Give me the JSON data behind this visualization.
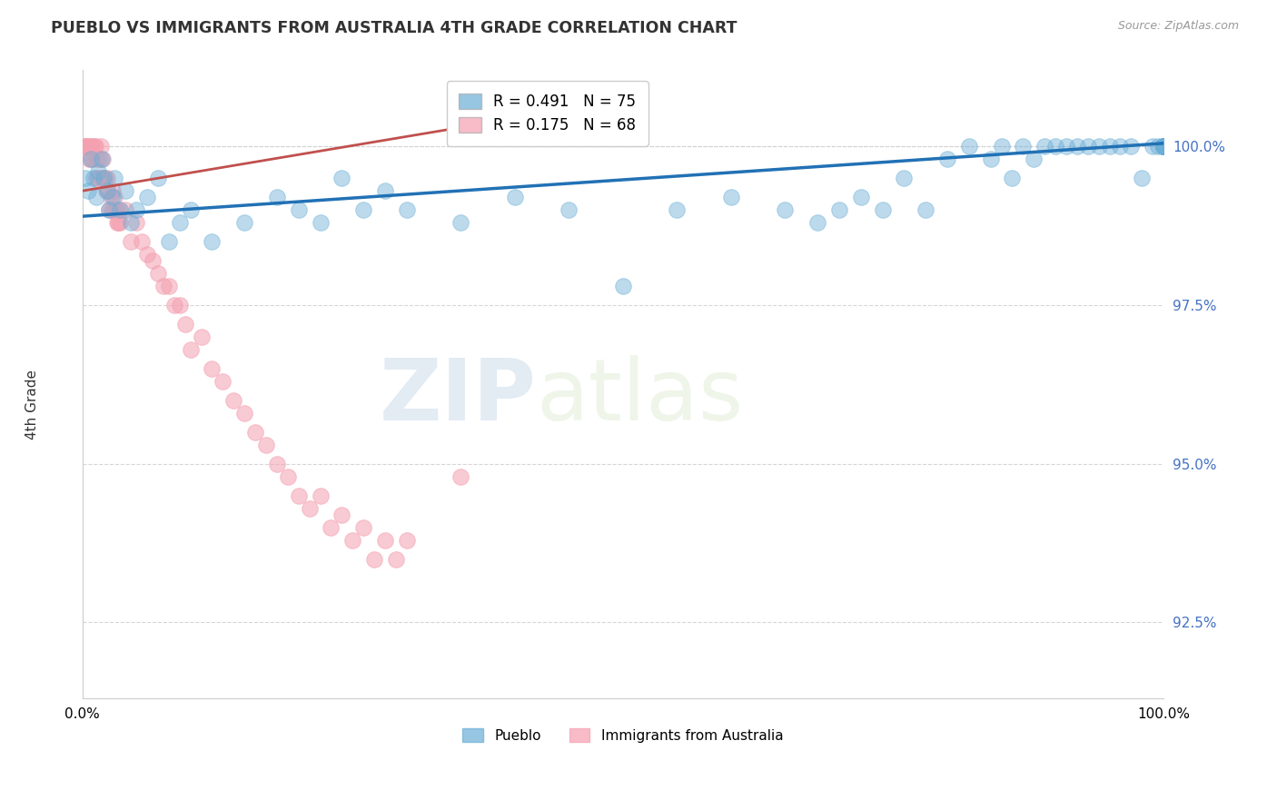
{
  "title": "PUEBLO VS IMMIGRANTS FROM AUSTRALIA 4TH GRADE CORRELATION CHART",
  "source_text": "Source: ZipAtlas.com",
  "ylabel": "4th Grade",
  "watermark_zip": "ZIP",
  "watermark_atlas": "atlas",
  "xlim": [
    0.0,
    100.0
  ],
  "ylim": [
    91.3,
    101.2
  ],
  "yticks": [
    92.5,
    95.0,
    97.5,
    100.0
  ],
  "ytick_labels": [
    "92.5%",
    "95.0%",
    "97.5%",
    "100.0%"
  ],
  "legend_blue_label": "R = 0.491   N = 75",
  "legend_pink_label": "R = 0.175   N = 68",
  "legend_bottom_blue": "Pueblo",
  "legend_bottom_pink": "Immigrants from Australia",
  "blue_color": "#6baed6",
  "pink_color": "#f4a0b0",
  "blue_line_color": "#2171b5",
  "pink_line_color": "#c0504d",
  "blue_scatter": {
    "x": [
      0.3,
      0.5,
      0.8,
      1.0,
      1.3,
      1.5,
      1.8,
      2.0,
      2.3,
      2.5,
      2.8,
      3.0,
      3.5,
      4.0,
      4.5,
      5.0,
      6.0,
      7.0,
      8.0,
      9.0,
      10.0,
      12.0,
      15.0,
      18.0,
      20.0,
      22.0,
      24.0,
      26.0,
      28.0,
      30.0,
      35.0,
      40.0,
      45.0,
      50.0,
      55.0,
      60.0,
      65.0,
      68.0,
      70.0,
      72.0,
      74.0,
      76.0,
      78.0,
      80.0,
      82.0,
      84.0,
      85.0,
      86.0,
      87.0,
      88.0,
      89.0,
      90.0,
      91.0,
      92.0,
      93.0,
      94.0,
      95.0,
      96.0,
      97.0,
      98.0,
      99.0,
      99.5,
      100.0,
      100.0,
      100.0,
      100.0,
      100.0,
      100.0,
      100.0,
      100.0,
      100.0,
      100.0,
      100.0,
      100.0,
      100.0
    ],
    "y": [
      99.5,
      99.3,
      99.8,
      99.5,
      99.2,
      99.6,
      99.8,
      99.5,
      99.3,
      99.0,
      99.2,
      99.5,
      99.0,
      99.3,
      98.8,
      99.0,
      99.2,
      99.5,
      98.5,
      98.8,
      99.0,
      98.5,
      98.8,
      99.2,
      99.0,
      98.8,
      99.5,
      99.0,
      99.3,
      99.0,
      98.8,
      99.2,
      99.0,
      97.8,
      99.0,
      99.2,
      99.0,
      98.8,
      99.0,
      99.2,
      99.0,
      99.5,
      99.0,
      99.8,
      100.0,
      99.8,
      100.0,
      99.5,
      100.0,
      99.8,
      100.0,
      100.0,
      100.0,
      100.0,
      100.0,
      100.0,
      100.0,
      100.0,
      100.0,
      99.5,
      100.0,
      100.0,
      100.0,
      100.0,
      100.0,
      100.0,
      100.0,
      100.0,
      100.0,
      100.0,
      100.0,
      100.0,
      100.0,
      100.0,
      100.0
    ]
  },
  "pink_scatter": {
    "x": [
      0.2,
      0.3,
      0.4,
      0.5,
      0.6,
      0.7,
      0.8,
      0.9,
      1.0,
      1.1,
      1.2,
      1.3,
      1.4,
      1.5,
      1.6,
      1.7,
      1.8,
      1.9,
      2.0,
      2.1,
      2.2,
      2.3,
      2.4,
      2.5,
      2.6,
      2.7,
      2.8,
      2.9,
      3.0,
      3.1,
      3.2,
      3.3,
      3.4,
      3.5,
      4.0,
      4.5,
      5.0,
      5.5,
      6.0,
      6.5,
      7.0,
      7.5,
      8.0,
      8.5,
      9.0,
      9.5,
      10.0,
      11.0,
      12.0,
      13.0,
      14.0,
      15.0,
      16.0,
      17.0,
      18.0,
      19.0,
      20.0,
      21.0,
      22.0,
      23.0,
      24.0,
      25.0,
      26.0,
      27.0,
      28.0,
      29.0,
      30.0,
      35.0
    ],
    "y": [
      100.0,
      100.0,
      100.0,
      100.0,
      99.8,
      100.0,
      99.8,
      100.0,
      99.8,
      100.0,
      100.0,
      99.5,
      99.8,
      99.5,
      99.8,
      100.0,
      99.5,
      99.8,
      99.5,
      99.5,
      99.3,
      99.5,
      99.3,
      99.0,
      99.2,
      99.0,
      99.3,
      99.0,
      99.2,
      99.0,
      98.8,
      98.8,
      99.0,
      98.8,
      99.0,
      98.5,
      98.8,
      98.5,
      98.3,
      98.2,
      98.0,
      97.8,
      97.8,
      97.5,
      97.5,
      97.2,
      96.8,
      97.0,
      96.5,
      96.3,
      96.0,
      95.8,
      95.5,
      95.3,
      95.0,
      94.8,
      94.5,
      94.3,
      94.5,
      94.0,
      94.2,
      93.8,
      94.0,
      93.5,
      93.8,
      93.5,
      93.8,
      94.8
    ]
  },
  "blue_trend_x": [
    0.0,
    100.0
  ],
  "blue_trend_y": [
    98.9,
    100.05
  ],
  "pink_trend_x": [
    0.0,
    35.0
  ],
  "pink_trend_y": [
    99.3,
    100.3
  ]
}
